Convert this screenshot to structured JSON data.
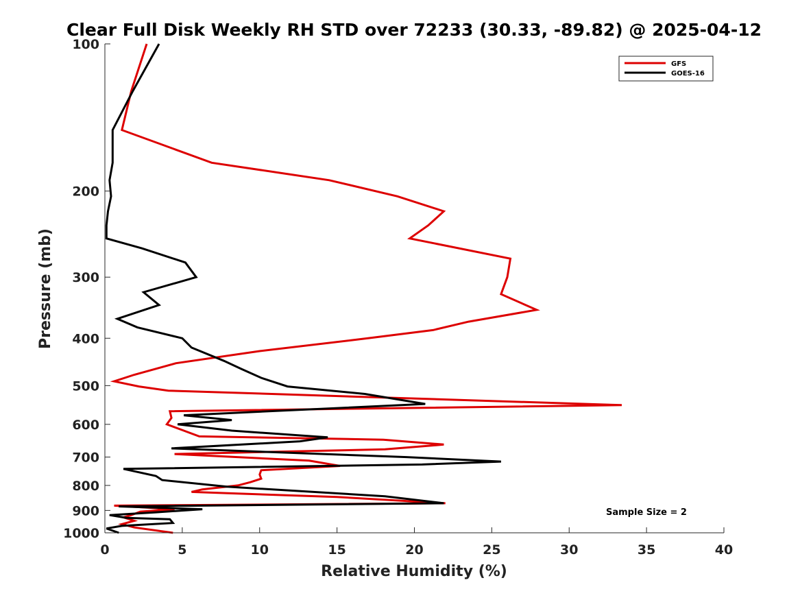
{
  "chart_data": {
    "type": "line",
    "title": "Clear Full Disk Weekly RH STD over 72233 (30.33, -89.82) @ 2025-04-12",
    "xlabel": "Relative Humidity (%)",
    "ylabel": "Pressure (mb)",
    "xlim": [
      0,
      40
    ],
    "ylim": [
      100,
      1000
    ],
    "yscale": "log",
    "reverse_y": true,
    "xticks": [
      0,
      5,
      10,
      15,
      20,
      25,
      30,
      35,
      40
    ],
    "yticks": [
      100,
      200,
      300,
      400,
      500,
      600,
      700,
      800,
      900,
      1000
    ],
    "legend_position": "top-right",
    "annotation": "Sample Size = 2",
    "series": [
      {
        "name": "GFS",
        "color": "#dd0000",
        "points": [
          [
            2.7,
            100
          ],
          [
            1.7,
            125
          ],
          [
            1.1,
            150
          ],
          [
            6.9,
            175
          ],
          [
            14.5,
            190
          ],
          [
            18.9,
            205
          ],
          [
            21.9,
            220
          ],
          [
            20.9,
            235
          ],
          [
            19.7,
            250
          ],
          [
            26.2,
            275
          ],
          [
            26.0,
            300
          ],
          [
            25.6,
            325
          ],
          [
            27.9,
            350
          ],
          [
            23.5,
            370
          ],
          [
            21.2,
            385
          ],
          [
            17.0,
            400
          ],
          [
            10.0,
            425
          ],
          [
            4.6,
            450
          ],
          [
            1.9,
            475
          ],
          [
            0.6,
            490
          ],
          [
            2.2,
            502
          ],
          [
            4.1,
            512
          ],
          [
            33.4,
            548
          ],
          [
            4.2,
            564
          ],
          [
            4.3,
            582
          ],
          [
            4.0,
            600
          ],
          [
            5.1,
            618
          ],
          [
            6.1,
            635
          ],
          [
            18.0,
            645
          ],
          [
            21.9,
            660
          ],
          [
            18.1,
            675
          ],
          [
            4.5,
            690
          ],
          [
            13.2,
            712
          ],
          [
            15.2,
            730
          ],
          [
            10.1,
            745
          ],
          [
            10.0,
            760
          ],
          [
            10.1,
            775
          ],
          [
            9.4,
            788
          ],
          [
            8.6,
            800
          ],
          [
            6.3,
            815
          ],
          [
            5.6,
            825
          ],
          [
            15.0,
            845
          ],
          [
            22.0,
            870
          ],
          [
            0.6,
            880
          ],
          [
            4.5,
            895
          ],
          [
            2.3,
            905
          ],
          [
            1.7,
            920
          ],
          [
            1.2,
            930
          ],
          [
            1.9,
            945
          ],
          [
            1.1,
            960
          ],
          [
            1.9,
            975
          ],
          [
            4.4,
            1000
          ]
        ]
      },
      {
        "name": "GOES-16",
        "color": "#000000",
        "points": [
          [
            3.5,
            100
          ],
          [
            1.8,
            125
          ],
          [
            0.5,
            150
          ],
          [
            0.5,
            175
          ],
          [
            0.3,
            190
          ],
          [
            0.4,
            205
          ],
          [
            0.2,
            220
          ],
          [
            0.1,
            235
          ],
          [
            0.1,
            250
          ],
          [
            2.4,
            262
          ],
          [
            5.2,
            280
          ],
          [
            5.9,
            300
          ],
          [
            2.5,
            322
          ],
          [
            3.5,
            342
          ],
          [
            0.8,
            365
          ],
          [
            2.1,
            380
          ],
          [
            5.0,
            400
          ],
          [
            5.6,
            418
          ],
          [
            7.7,
            445
          ],
          [
            8.8,
            462
          ],
          [
            10.1,
            482
          ],
          [
            11.8,
            502
          ],
          [
            16.8,
            520
          ],
          [
            20.7,
            545
          ],
          [
            5.1,
            575
          ],
          [
            8.2,
            588
          ],
          [
            4.7,
            600
          ],
          [
            8.2,
            618
          ],
          [
            14.4,
            638
          ],
          [
            12.6,
            650
          ],
          [
            4.3,
            672
          ],
          [
            19.5,
            700
          ],
          [
            25.6,
            715
          ],
          [
            20.5,
            725
          ],
          [
            1.2,
            740
          ],
          [
            3.3,
            765
          ],
          [
            3.7,
            780
          ],
          [
            7.9,
            805
          ],
          [
            18.1,
            842
          ],
          [
            21.9,
            870
          ],
          [
            0.9,
            883
          ],
          [
            6.3,
            895
          ],
          [
            3.3,
            908
          ],
          [
            0.3,
            920
          ],
          [
            1.4,
            932
          ],
          [
            4.2,
            938
          ],
          [
            4.4,
            955
          ],
          [
            1.1,
            968
          ],
          [
            0.1,
            980
          ],
          [
            0.9,
            1000
          ]
        ]
      }
    ]
  }
}
